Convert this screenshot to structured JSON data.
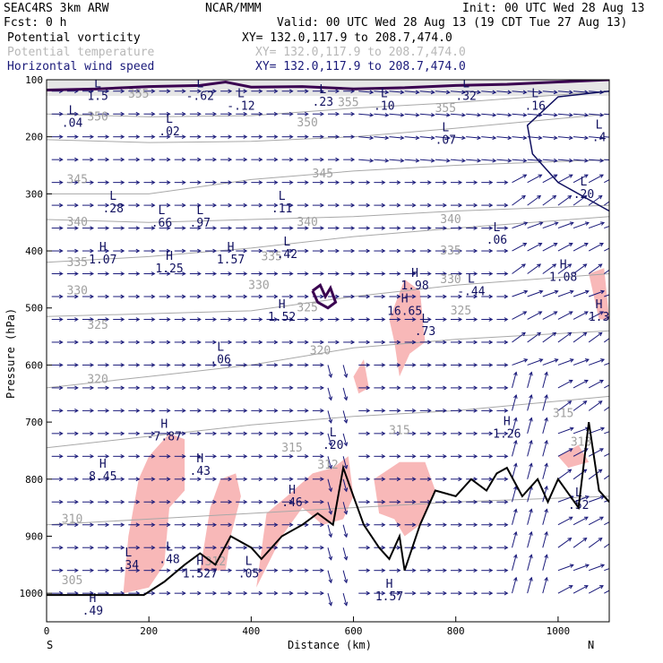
{
  "header": {
    "model": "SEAC4RS  3km ARW",
    "org": "NCAR/MMM",
    "init": "Init: 00 UTC Wed 28 Aug 13",
    "fcst": "Fcst:    0 h",
    "valid": "Valid: 00 UTC Wed 28 Aug 13 (19 CDT Tue 27 Aug 13)",
    "fields": [
      {
        "name": "Potential vorticity",
        "xy": "XY= 132.0,117.9 to 208.7,474.0",
        "color": "#000000"
      },
      {
        "name": "Potential temperature",
        "xy": "XY= 132.0,117.9 to 208.7,474.0",
        "color": "#b8b8b8"
      },
      {
        "name": "Horizontal wind speed",
        "xy": "XY= 132.0,117.9 to 208.7,474.0",
        "color": "#1a1a7a"
      }
    ]
  },
  "chart_data": {
    "type": "cross-section",
    "xlabel": "Distance (km)",
    "ylabel": "Pressure (hPa)",
    "xlim": [
      0,
      1100
    ],
    "ylim": [
      1050,
      100
    ],
    "x_ticks": [
      0,
      200,
      400,
      600,
      800,
      1000
    ],
    "y_ticks": [
      100,
      200,
      300,
      400,
      500,
      600,
      700,
      800,
      900,
      1000
    ],
    "x_end_labels": {
      "left": "S",
      "right": "N"
    },
    "colors": {
      "terrain": "#000000",
      "pv_shading": "#f8b8b8",
      "theta": "#a8a8a8",
      "wind": "#1a1a7a",
      "pv_contour": "#3a0050"
    },
    "isentropes": [
      {
        "label": "350",
        "points": [
          [
            0,
            160
          ],
          [
            200,
            165
          ],
          [
            400,
            163
          ],
          [
            600,
            150
          ],
          [
            800,
            140
          ],
          [
            1100,
            120
          ]
        ]
      },
      {
        "label": "345",
        "points": [
          [
            0,
            205
          ],
          [
            200,
            210
          ],
          [
            400,
            208
          ],
          [
            600,
            200
          ],
          [
            800,
            185
          ],
          [
            1100,
            160
          ]
        ]
      },
      {
        "label": "340",
        "points": [
          [
            0,
            300
          ],
          [
            200,
            300
          ],
          [
            400,
            275
          ],
          [
            600,
            260
          ],
          [
            800,
            250
          ],
          [
            1100,
            240
          ]
        ]
      },
      {
        "label": "335",
        "points": [
          [
            0,
            345
          ],
          [
            200,
            350
          ],
          [
            400,
            345
          ],
          [
            600,
            340
          ],
          [
            800,
            330
          ],
          [
            1100,
            320
          ]
        ]
      },
      {
        "label": "330",
        "points": [
          [
            0,
            420
          ],
          [
            200,
            410
          ],
          [
            400,
            395
          ],
          [
            600,
            375
          ],
          [
            800,
            360
          ],
          [
            1100,
            340
          ]
        ]
      },
      {
        "label": "325",
        "points": [
          [
            0,
            515
          ],
          [
            200,
            510
          ],
          [
            400,
            505
          ],
          [
            600,
            480
          ],
          [
            800,
            460
          ],
          [
            1100,
            440
          ]
        ]
      },
      {
        "label": "320",
        "points": [
          [
            0,
            640
          ],
          [
            200,
            620
          ],
          [
            400,
            600
          ],
          [
            600,
            570
          ],
          [
            800,
            555
          ],
          [
            1100,
            540
          ]
        ]
      },
      {
        "label": "315",
        "points": [
          [
            0,
            745
          ],
          [
            200,
            725
          ],
          [
            400,
            705
          ],
          [
            600,
            690
          ],
          [
            800,
            680
          ],
          [
            1100,
            655
          ]
        ]
      },
      {
        "label": "310",
        "points": [
          [
            0,
            880
          ],
          [
            200,
            870
          ],
          [
            400,
            860
          ],
          [
            600,
            850
          ],
          [
            800,
            840
          ],
          [
            1100,
            830
          ]
        ]
      }
    ],
    "theta_labels": [
      {
        "text": "350",
        "x": 100,
        "p": 165
      },
      {
        "text": "355",
        "x": 180,
        "p": 125
      },
      {
        "text": "350",
        "x": 510,
        "p": 175
      },
      {
        "text": "355",
        "x": 590,
        "p": 140
      },
      {
        "text": "355",
        "x": 780,
        "p": 150
      },
      {
        "text": "345",
        "x": 60,
        "p": 275
      },
      {
        "text": "345",
        "x": 540,
        "p": 265
      },
      {
        "text": "340",
        "x": 60,
        "p": 350
      },
      {
        "text": "340",
        "x": 510,
        "p": 350
      },
      {
        "text": "340",
        "x": 790,
        "p": 345
      },
      {
        "text": "335",
        "x": 60,
        "p": 420
      },
      {
        "text": "335",
        "x": 440,
        "p": 410
      },
      {
        "text": "335",
        "x": 790,
        "p": 400
      },
      {
        "text": "330",
        "x": 60,
        "p": 470
      },
      {
        "text": "330",
        "x": 415,
        "p": 460
      },
      {
        "text": "330",
        "x": 790,
        "p": 450
      },
      {
        "text": "325",
        "x": 100,
        "p": 530
      },
      {
        "text": "325",
        "x": 510,
        "p": 500
      },
      {
        "text": "325",
        "x": 810,
        "p": 505
      },
      {
        "text": "320",
        "x": 100,
        "p": 625
      },
      {
        "text": "320",
        "x": 535,
        "p": 575
      },
      {
        "text": "315",
        "x": 480,
        "p": 745
      },
      {
        "text": "315",
        "x": 690,
        "p": 715
      },
      {
        "text": "315",
        "x": 1010,
        "p": 685
      },
      {
        "text": "312",
        "x": 550,
        "p": 775
      },
      {
        "text": "313",
        "x": 1045,
        "p": 735
      },
      {
        "text": "310",
        "x": 50,
        "p": 870
      },
      {
        "text": "305",
        "x": 50,
        "p": 978
      },
      {
        "text": "312",
        "x": 330,
        "p": 945
      }
    ],
    "hl_labels": [
      {
        "letter": "L",
        "value": "1.5",
        "x": 100,
        "p": 118
      },
      {
        "letter": "L",
        "value": ".04",
        "x": 50,
        "p": 165
      },
      {
        "letter": "L",
        "value": "-.62",
        "x": 300,
        "p": 118
      },
      {
        "letter": "L",
        "value": "-.12",
        "x": 380,
        "p": 135
      },
      {
        "letter": "L",
        "value": ".02",
        "x": 240,
        "p": 180
      },
      {
        "letter": "L",
        "value": ".23",
        "x": 540,
        "p": 128
      },
      {
        "letter": "L",
        "value": ".10",
        "x": 660,
        "p": 135
      },
      {
        "letter": "L",
        "value": ".32",
        "x": 820,
        "p": 118
      },
      {
        "letter": "L",
        "value": ".07",
        "x": 780,
        "p": 195
      },
      {
        "letter": "L",
        "value": ".28",
        "x": 130,
        "p": 315
      },
      {
        "letter": "L",
        "value": ".66",
        "x": 225,
        "p": 340
      },
      {
        "letter": "L",
        "value": ".97",
        "x": 300,
        "p": 340
      },
      {
        "letter": "L",
        "value": ".11",
        "x": 460,
        "p": 315
      },
      {
        "letter": "L",
        "value": ".42",
        "x": 470,
        "p": 395
      },
      {
        "letter": "L",
        "value": ".06",
        "x": 880,
        "p": 370
      },
      {
        "letter": "H",
        "value": "1.07",
        "x": 110,
        "p": 405
      },
      {
        "letter": "H",
        "value": "1.25",
        "x": 240,
        "p": 420
      },
      {
        "letter": "H",
        "value": "1.57",
        "x": 360,
        "p": 405
      },
      {
        "letter": "H",
        "value": "1.98",
        "x": 720,
        "p": 450
      },
      {
        "letter": "L",
        "value": "-.44",
        "x": 830,
        "p": 460
      },
      {
        "letter": "H",
        "value": "1.08",
        "x": 1010,
        "p": 435
      },
      {
        "letter": "H",
        "value": "1.52",
        "x": 460,
        "p": 505
      },
      {
        "letter": "H",
        "value": "16.65",
        "x": 700,
        "p": 495
      },
      {
        "letter": "L",
        "value": ".73",
        "x": 740,
        "p": 530
      },
      {
        "letter": "L",
        "value": ".06",
        "x": 340,
        "p": 580
      },
      {
        "letter": "H",
        "value": "1.3",
        "x": 1080,
        "p": 505
      },
      {
        "letter": "H",
        "value": "-7.87",
        "x": 230,
        "p": 715
      },
      {
        "letter": "L",
        "value": ".20",
        "x": 560,
        "p": 730
      },
      {
        "letter": "H",
        "value": "1.26",
        "x": 900,
        "p": 710
      },
      {
        "letter": "H",
        "value": "8.45",
        "x": 110,
        "p": 785
      },
      {
        "letter": "H",
        "value": ".43",
        "x": 300,
        "p": 775
      },
      {
        "letter": "H",
        "value": ".46",
        "x": 480,
        "p": 830
      },
      {
        "letter": "L",
        "value": ".52",
        "x": 1040,
        "p": 835
      },
      {
        "letter": "L",
        "value": ".34",
        "x": 160,
        "p": 940
      },
      {
        "letter": "L",
        "value": ".48",
        "x": 240,
        "p": 930
      },
      {
        "letter": "H",
        "value": "1.527",
        "x": 300,
        "p": 955
      },
      {
        "letter": "L",
        "value": ".05",
        "x": 395,
        "p": 955
      },
      {
        "letter": "H",
        "value": "1.57",
        "x": 670,
        "p": 995
      },
      {
        "letter": "H",
        "value": ".49",
        "x": 90,
        "p": 1020
      },
      {
        "letter": "L",
        "value": ".16",
        "x": 955,
        "p": 135
      },
      {
        "letter": "L",
        "value": ".20",
        "x": 1050,
        "p": 290
      },
      {
        "letter": "L",
        "value": ".4",
        "x": 1080,
        "p": 190
      }
    ],
    "terrain": [
      [
        0,
        1003
      ],
      [
        190,
        1003
      ],
      [
        230,
        980
      ],
      [
        270,
        950
      ],
      [
        300,
        930
      ],
      [
        330,
        950
      ],
      [
        360,
        900
      ],
      [
        400,
        920
      ],
      [
        420,
        940
      ],
      [
        460,
        900
      ],
      [
        500,
        880
      ],
      [
        530,
        860
      ],
      [
        560,
        880
      ],
      [
        580,
        780
      ],
      [
        600,
        830
      ],
      [
        620,
        880
      ],
      [
        650,
        920
      ],
      [
        670,
        940
      ],
      [
        690,
        900
      ],
      [
        700,
        960
      ],
      [
        730,
        880
      ],
      [
        760,
        820
      ],
      [
        800,
        830
      ],
      [
        830,
        800
      ],
      [
        860,
        820
      ],
      [
        880,
        790
      ],
      [
        900,
        780
      ],
      [
        930,
        830
      ],
      [
        960,
        800
      ],
      [
        980,
        840
      ],
      [
        1000,
        800
      ],
      [
        1040,
        850
      ],
      [
        1060,
        700
      ],
      [
        1080,
        820
      ],
      [
        1100,
        840
      ]
    ],
    "wind_barbs": {
      "columns": [
        10,
        40,
        70,
        100,
        130,
        160,
        190,
        220,
        250,
        280,
        310,
        340,
        370,
        400,
        430,
        460,
        490,
        520,
        550,
        580,
        610,
        640,
        670,
        700,
        730,
        760,
        790,
        820,
        850,
        880,
        910,
        940,
        970,
        1000,
        1030,
        1060,
        1090
      ],
      "levels": [
        120,
        160,
        200,
        240,
        280,
        320,
        360,
        400,
        440,
        480,
        520,
        560,
        600,
        640,
        680,
        720,
        760,
        800,
        840,
        880,
        920,
        960,
        1000
      ]
    }
  }
}
